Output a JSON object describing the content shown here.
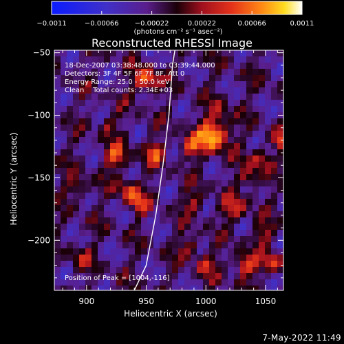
{
  "chart_data": {
    "type": "heatmap",
    "title": "Reconstructed RHESSI Image",
    "xlabel": "Heliocentric X (arcsec)",
    "ylabel": "Heliocentric Y (arcsec)",
    "xlim": [
      873,
      1065
    ],
    "ylim": [
      -240,
      -48
    ],
    "x_ticks": [
      900,
      950,
      1000,
      1050
    ],
    "y_ticks": [
      -50,
      -100,
      -150,
      -200
    ],
    "x_tick_labels": [
      "900",
      "950",
      "1000",
      "1050"
    ],
    "y_tick_labels": [
      "−50",
      "−100",
      "−150",
      "−200"
    ],
    "colorbar": {
      "range": [
        -0.0011,
        0.0011
      ],
      "tick_labels": [
        "−0.0011",
        "−0.00066",
        "−0.00022",
        "0.00022",
        "0.00066",
        "0.0011"
      ],
      "units_label": "(photons cm⁻² s⁻¹ asec⁻²)",
      "colormap": "blue-purple-red-yellow-white"
    },
    "annotations": [
      "18-Dec-2007 03:38:48.000 to 03:39:44.000",
      "Detectors: 3F 4F 5F 6F 7F 8F, Att 0",
      "Energy Range: 25.0 - 50.0 keV",
      "Clean    Total counts: 2.34E+03"
    ],
    "peak_label": "Position of Peak = [1004,-116]",
    "peak": [
      1004,
      -116
    ],
    "limb_curve": [
      [
        940,
        -240
      ],
      [
        950,
        -220
      ],
      [
        958,
        -180
      ],
      [
        964,
        -140
      ],
      [
        969,
        -100
      ],
      [
        972,
        -60
      ],
      [
        974,
        -48
      ]
    ],
    "sources": [
      {
        "x": 1006,
        "y": -116,
        "amp": 1.0,
        "sigma": 9
      },
      {
        "x": 950,
        "y": -72,
        "amp": 0.78,
        "sigma": 7
      },
      {
        "x": 925,
        "y": -133,
        "amp": 0.6,
        "sigma": 7
      },
      {
        "x": 957,
        "y": -130,
        "amp": 0.58,
        "sigma": 6
      },
      {
        "x": 986,
        "y": -125,
        "amp": 0.55,
        "sigma": 6
      },
      {
        "x": 935,
        "y": -160,
        "amp": 0.55,
        "sigma": 6
      },
      {
        "x": 892,
        "y": -157,
        "amp": 0.4,
        "sigma": 6
      },
      {
        "x": 944,
        "y": -170,
        "amp": 0.5,
        "sigma": 6
      },
      {
        "x": 1037,
        "y": -150,
        "amp": 0.48,
        "sigma": 6
      },
      {
        "x": 1024,
        "y": -175,
        "amp": 0.5,
        "sigma": 7
      },
      {
        "x": 990,
        "y": -170,
        "amp": 0.42,
        "sigma": 6
      },
      {
        "x": 1050,
        "y": -195,
        "amp": 0.4,
        "sigma": 6
      },
      {
        "x": 1033,
        "y": -220,
        "amp": 0.62,
        "sigma": 7
      },
      {
        "x": 1056,
        "y": -218,
        "amp": 0.55,
        "sigma": 6
      },
      {
        "x": 1046,
        "y": -135,
        "amp": 0.5,
        "sigma": 6
      },
      {
        "x": 1000,
        "y": -220,
        "amp": 0.45,
        "sigma": 6
      },
      {
        "x": 986,
        "y": -205,
        "amp": 0.4,
        "sigma": 6
      },
      {
        "x": 1063,
        "y": -120,
        "amp": 0.55,
        "sigma": 5
      },
      {
        "x": 918,
        "y": -108,
        "amp": 0.35,
        "sigma": 5
      },
      {
        "x": 895,
        "y": -215,
        "amp": 0.35,
        "sigma": 6
      },
      {
        "x": 1012,
        "y": -95,
        "amp": 0.3,
        "sigma": 6
      }
    ]
  },
  "footer": {
    "timestamp": "7-May-2022 11:49"
  }
}
